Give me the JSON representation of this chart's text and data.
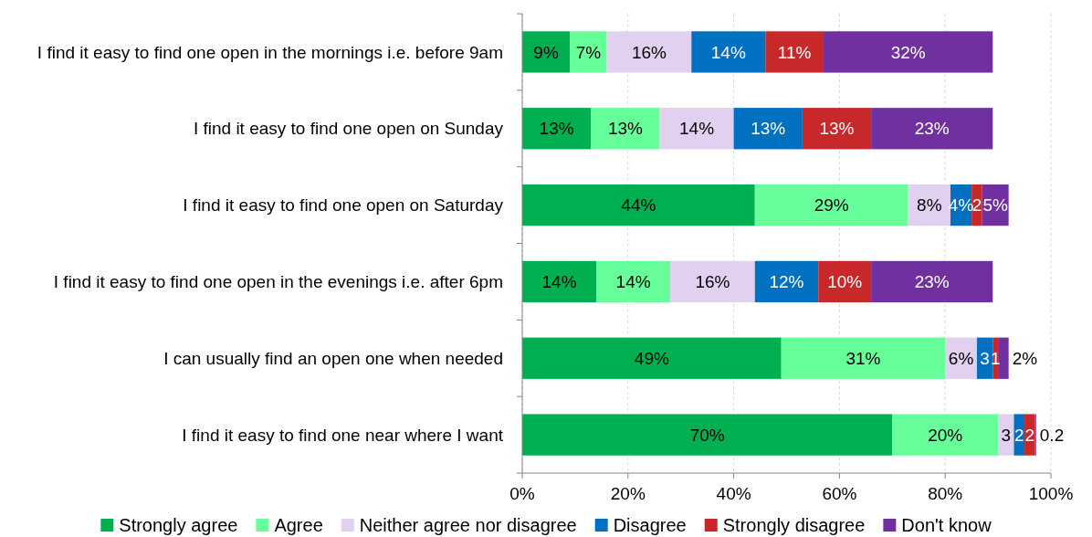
{
  "chart_data": {
    "type": "bar",
    "orientation": "horizontal",
    "stacked": true,
    "categories": [
      "I find it easy to find one open in the mornings i.e. before 9am",
      "I find it easy to find one open on Sunday",
      "I find it easy to find one open on Saturday",
      "I find it easy to find one open in the evenings i.e. after 6pm",
      "I can usually find an open one when needed",
      "I find it easy to find one near where I want"
    ],
    "series": [
      {
        "name": "Strongly agree",
        "color": "#00b050",
        "values": [
          9,
          13,
          44,
          14,
          49,
          70
        ],
        "value_labels": [
          "9%",
          "13%",
          "44%",
          "14%",
          "49%",
          "70%"
        ]
      },
      {
        "name": "Agree",
        "color": "#66ff99",
        "values": [
          7,
          13,
          29,
          14,
          31,
          20
        ],
        "value_labels": [
          "7%",
          "13%",
          "29%",
          "14%",
          "31%",
          "20%"
        ]
      },
      {
        "name": "Neither agree nor disagree",
        "color": "#e1d0f0",
        "values": [
          16,
          14,
          8,
          16,
          6,
          3
        ],
        "value_labels": [
          "16%",
          "14%",
          "8%",
          "16%",
          "6%",
          "3"
        ]
      },
      {
        "name": "Disagree",
        "color": "#0070c0",
        "values": [
          14,
          13,
          4,
          12,
          3,
          2
        ],
        "value_labels": [
          "14%",
          "13%",
          "4%",
          "12%",
          "3",
          "2"
        ]
      },
      {
        "name": "Strongly disagree",
        "color": "#c9282a",
        "values": [
          11,
          13,
          2,
          10,
          1,
          2
        ],
        "value_labels": [
          "11%",
          "13%",
          "2",
          "10%",
          "1",
          "2"
        ]
      },
      {
        "name": "Don't know",
        "color": "#7030a0",
        "values": [
          32,
          23,
          5,
          23,
          2,
          0.2
        ],
        "value_labels": [
          "32%",
          "23%",
          "5%",
          "23%",
          "2%",
          "0.2"
        ]
      }
    ],
    "xlim": [
      0,
      100
    ],
    "xticks": [
      {
        "value": 0,
        "label": "0%"
      },
      {
        "value": 20,
        "label": "20%"
      },
      {
        "value": 40,
        "label": "40%"
      },
      {
        "value": 60,
        "label": "60%"
      },
      {
        "value": 80,
        "label": "80%"
      },
      {
        "value": 100,
        "label": "100%"
      }
    ],
    "grid": "x",
    "legend": "bottom"
  }
}
